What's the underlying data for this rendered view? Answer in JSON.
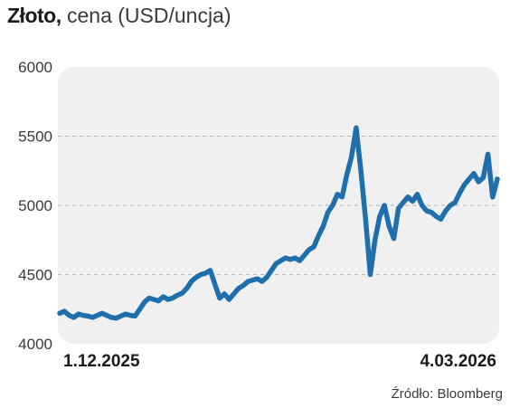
{
  "chart_data": {
    "type": "line",
    "title_bold": "Złoto,",
    "title_rest": "cena (USD/uncja)",
    "xlabel": "",
    "ylabel": "",
    "ylim": [
      4000,
      6000
    ],
    "yticks": [
      4000,
      4500,
      5000,
      5500,
      6000
    ],
    "xlim": [
      "2025-12-01",
      "2026-03-04"
    ],
    "x_tick_labels": [
      "1.12.2025",
      "4.03.2026"
    ],
    "grid": "horizontal-dashed",
    "line_color": "#1f6fad",
    "background_color": "#f0f0f0",
    "series": [
      {
        "x": [
          "2025-12-01",
          "2025-12-02",
          "2025-12-03",
          "2025-12-04",
          "2025-12-05",
          "2025-12-06",
          "2025-12-07",
          "2025-12-08",
          "2025-12-09",
          "2025-12-10",
          "2025-12-11",
          "2025-12-12",
          "2025-12-13",
          "2025-12-14",
          "2025-12-15",
          "2025-12-16",
          "2025-12-17",
          "2025-12-18",
          "2025-12-19",
          "2025-12-20",
          "2025-12-21",
          "2025-12-22",
          "2025-12-23",
          "2025-12-24",
          "2025-12-25",
          "2025-12-26",
          "2025-12-27",
          "2025-12-28",
          "2025-12-29",
          "2025-12-30",
          "2025-12-31",
          "2026-01-01",
          "2026-01-02",
          "2026-01-03",
          "2026-01-04",
          "2026-01-05",
          "2026-01-06",
          "2026-01-07",
          "2026-01-08",
          "2026-01-09",
          "2026-01-10",
          "2026-01-11",
          "2026-01-12",
          "2026-01-13",
          "2026-01-14",
          "2026-01-15",
          "2026-01-16",
          "2026-01-17",
          "2026-01-18",
          "2026-01-19",
          "2026-01-20",
          "2026-01-21",
          "2026-01-22",
          "2026-01-23",
          "2026-01-24",
          "2026-01-25",
          "2026-01-26",
          "2026-01-27",
          "2026-01-28",
          "2026-01-29",
          "2026-01-30",
          "2026-01-31",
          "2026-02-01",
          "2026-02-02",
          "2026-02-03",
          "2026-02-04",
          "2026-02-05",
          "2026-02-06",
          "2026-02-07",
          "2026-02-08",
          "2026-02-09",
          "2026-02-10",
          "2026-02-11",
          "2026-02-12",
          "2026-02-13",
          "2026-02-14",
          "2026-02-15",
          "2026-02-16",
          "2026-02-17",
          "2026-02-18",
          "2026-02-19",
          "2026-02-20",
          "2026-02-21",
          "2026-02-22",
          "2026-02-23",
          "2026-02-24",
          "2026-02-25",
          "2026-02-26",
          "2026-02-27",
          "2026-02-28",
          "2026-03-01",
          "2026-03-02",
          "2026-03-03",
          "2026-03-04"
        ],
        "y": [
          4220,
          4235,
          4205,
          4190,
          4215,
          4205,
          4200,
          4190,
          4205,
          4220,
          4205,
          4190,
          4185,
          4200,
          4215,
          4205,
          4200,
          4250,
          4300,
          4330,
          4320,
          4310,
          4340,
          4320,
          4330,
          4350,
          4365,
          4400,
          4450,
          4480,
          4500,
          4510,
          4530,
          4430,
          4330,
          4360,
          4320,
          4360,
          4400,
          4420,
          4450,
          4460,
          4470,
          4450,
          4480,
          4530,
          4580,
          4600,
          4620,
          4610,
          4620,
          4600,
          4640,
          4680,
          4700,
          4780,
          4850,
          4950,
          5000,
          5080,
          5060,
          5220,
          5350,
          5560,
          5250,
          4900,
          4500,
          4750,
          4920,
          5000,
          4850,
          4760,
          4980,
          5020,
          5060,
          5030,
          5080,
          5000,
          4960,
          4950,
          4920,
          4900,
          4960,
          5000,
          5020,
          5090,
          5150,
          5190,
          5230,
          5170,
          5200,
          5370,
          5060,
          5190
        ]
      }
    ]
  }
}
